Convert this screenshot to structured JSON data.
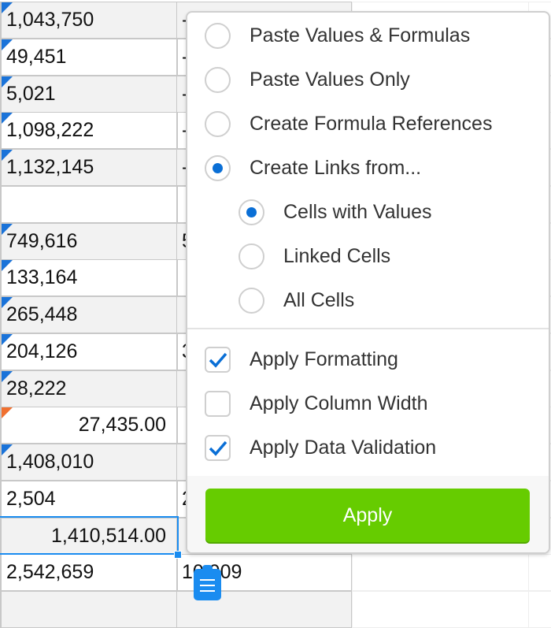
{
  "sheet": {
    "rows": [
      {
        "a": "1,043,750",
        "b": "-",
        "marker": "blue",
        "shade": true
      },
      {
        "a": "49,451",
        "b": "-",
        "marker": "blue",
        "shade": false
      },
      {
        "a": "5,021",
        "b": "-",
        "marker": "blue",
        "shade": true
      },
      {
        "a": "1,098,222",
        "b": "-",
        "marker": "blue",
        "shade": false
      },
      {
        "a": "1,132,145",
        "b": "-",
        "marker": "blue",
        "shade": true
      },
      {
        "a": "",
        "b": "",
        "marker": "",
        "shade": false
      },
      {
        "a": "749,616",
        "b": "5",
        "marker": "blue",
        "shade": true
      },
      {
        "a": "133,164",
        "b": "",
        "marker": "blue",
        "shade": false
      },
      {
        "a": "265,448",
        "b": "",
        "marker": "blue",
        "shade": true
      },
      {
        "a": "204,126",
        "b": "3",
        "marker": "blue",
        "shade": false
      },
      {
        "a": "28,222",
        "b": "",
        "marker": "blue",
        "shade": true
      },
      {
        "a": "27,435.00",
        "b": "",
        "marker": "orange",
        "shade": false,
        "align": "right"
      },
      {
        "a": "1,408,010",
        "b": "",
        "marker": "blue",
        "shade": true
      },
      {
        "a": "2,504",
        "b": "2",
        "marker": "",
        "shade": false
      },
      {
        "a": "1,410,514.00",
        "b": "",
        "marker": "",
        "shade": true,
        "align": "right",
        "selected": true
      },
      {
        "a": "2,542,659",
        "b": "10,909",
        "marker": "",
        "shade": false
      },
      {
        "a": "",
        "b": "",
        "marker": "",
        "shade": true
      }
    ]
  },
  "paste_menu": {
    "options": [
      {
        "label": "Paste Values & Formulas",
        "checked": false
      },
      {
        "label": "Paste Values Only",
        "checked": false
      },
      {
        "label": "Create Formula References",
        "checked": false
      },
      {
        "label": "Create Links from...",
        "checked": true
      }
    ],
    "sub_options": [
      {
        "label": "Cells with Values",
        "checked": true
      },
      {
        "label": "Linked Cells",
        "checked": false
      },
      {
        "label": "All Cells",
        "checked": false
      }
    ],
    "checkboxes": [
      {
        "label": "Apply Formatting",
        "checked": true
      },
      {
        "label": "Apply Column Width",
        "checked": false
      },
      {
        "label": "Apply Data Validation",
        "checked": true
      }
    ],
    "apply_label": "Apply"
  },
  "colors": {
    "accent": "#0a6fd6",
    "apply": "#66cc00",
    "selection": "#1a8cf0",
    "marker_blue": "#1a73d9",
    "marker_orange": "#f07030"
  },
  "icons": {
    "paste": "clipboard-icon"
  }
}
